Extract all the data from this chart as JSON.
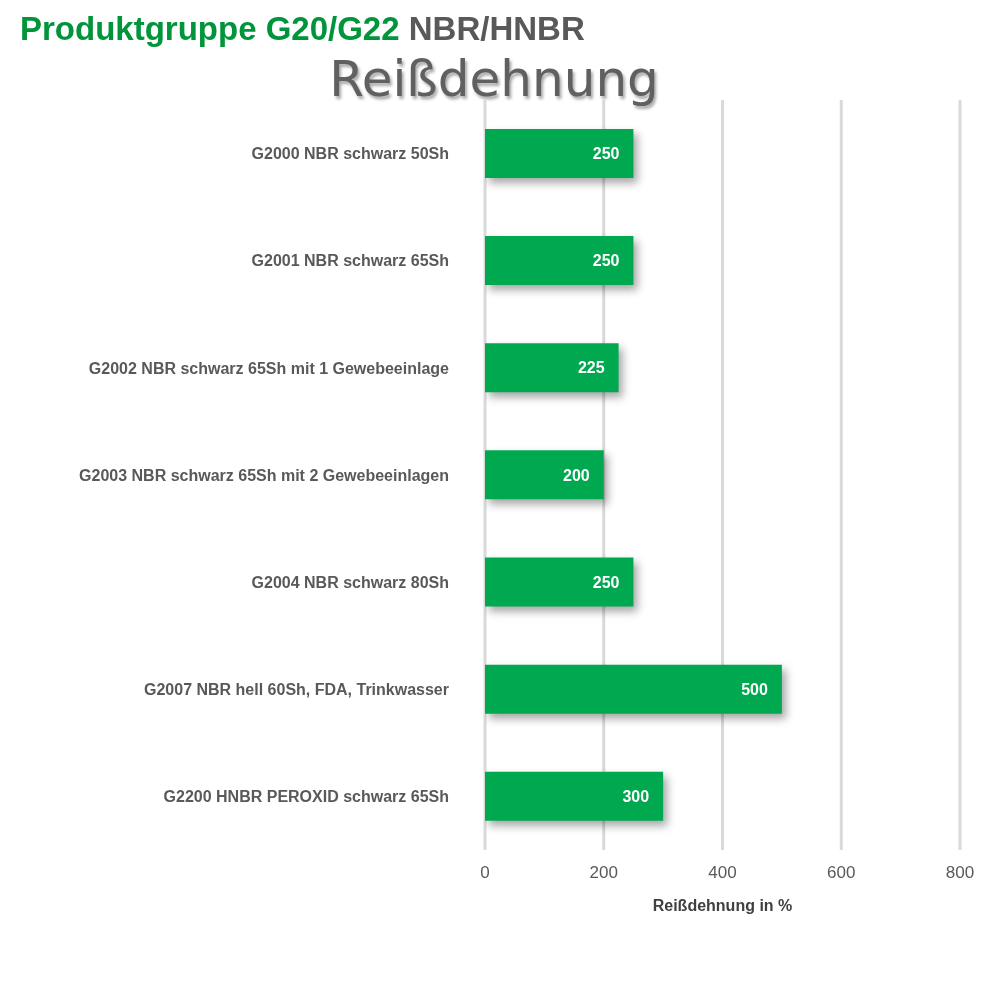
{
  "chart_data": {
    "type": "bar",
    "orientation": "horizontal",
    "title": "Produktgruppe G20/G22 NBR/HNBR",
    "subtitle": "Reißdehnung",
    "xlabel": "Reißdehnung in %",
    "categories": [
      "G2000 NBR schwarz 50Sh",
      "G2001 NBR schwarz 65Sh",
      "G2002 NBR schwarz 65Sh mit 1 Gewebeeinlage",
      "G2003 NBR schwarz 65Sh mit 2 Gewebeeinlagen",
      "G2004 NBR schwarz 80Sh",
      "G2007 NBR hell 60Sh, FDA, Trinkwasser",
      "G2200 HNBR PEROXID schwarz 65Sh"
    ],
    "values": [
      250,
      250,
      225,
      200,
      250,
      500,
      300
    ],
    "color": "#00a84f",
    "xlim": [
      0,
      800
    ],
    "xticks": [
      0,
      200,
      400,
      600,
      800
    ],
    "grid": "x",
    "data_labels": true
  }
}
